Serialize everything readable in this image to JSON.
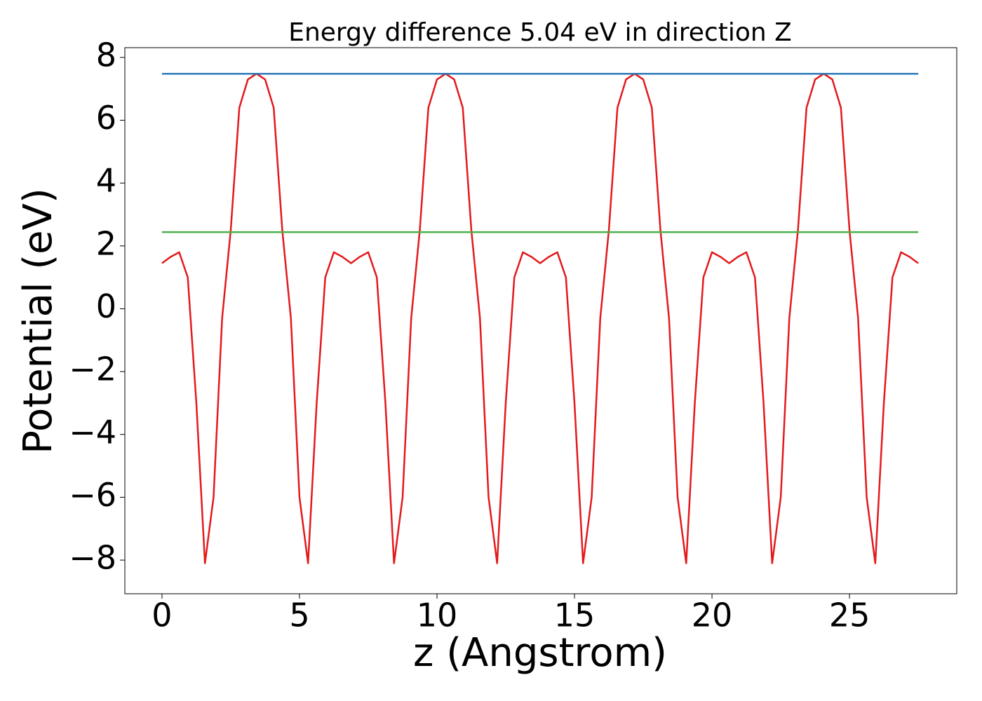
{
  "chart_data": {
    "type": "line",
    "title": "Energy difference 5.04 eV in direction Z",
    "x_label": "z (Angstrom)",
    "y_label": "Potential (eV)",
    "xlim": [
      -1.35,
      28.9
    ],
    "ylim": [
      -9.07,
      8.31
    ],
    "xticks": [
      0,
      5,
      10,
      15,
      20,
      25
    ],
    "yticks": [
      {
        "value": -8,
        "label": "−8"
      },
      {
        "value": -6,
        "label": "−6"
      },
      {
        "value": -4,
        "label": "−4"
      },
      {
        "value": -2,
        "label": "−2"
      },
      0,
      2,
      4,
      6,
      8
    ],
    "grid": false,
    "series": [
      {
        "color": "#e31a1c",
        "x": [
          0,
          0.3125,
          0.625,
          0.9375,
          1.25,
          1.5625,
          1.875,
          2.1875,
          2.5,
          2.8125,
          3.125,
          3.4375,
          3.75,
          4.0625,
          4.375,
          4.6875,
          5,
          5.3125,
          5.625,
          5.9375,
          6.25,
          6.5625,
          6.875,
          7.1875,
          7.5,
          7.8125,
          8.125,
          8.4375,
          8.75,
          9.0625,
          9.375,
          9.6875,
          10,
          10.3125,
          10.625,
          10.9375,
          11.25,
          11.5625,
          11.875,
          12.1875,
          12.5,
          12.8125,
          13.125,
          13.4375,
          13.75,
          14.0625,
          14.375,
          14.6875,
          15,
          15.3125,
          15.625,
          15.9375,
          16.25,
          16.5625,
          16.875,
          17.1875,
          17.5,
          17.8125,
          18.125,
          18.4375,
          18.75,
          19.0625,
          19.375,
          19.6875,
          20,
          20.3125,
          20.625,
          20.9375,
          21.25,
          21.5625,
          21.875,
          22.1875,
          22.5,
          22.8125,
          23.125,
          23.4375,
          23.75,
          24.0625,
          24.375,
          24.6875,
          25,
          25.3125,
          25.625,
          25.9375,
          26.25,
          26.5625,
          26.875,
          27.1875,
          27.5
        ],
        "values": [
          1.45,
          1.65,
          1.8,
          1.0,
          -3.0,
          -8.1,
          -6.0,
          -0.3,
          2.5,
          6.4,
          7.3,
          7.48,
          7.3,
          6.4,
          2.5,
          -0.3,
          -6.0,
          -8.1,
          -3.0,
          1.0,
          1.8,
          1.65,
          1.45,
          1.65,
          1.8,
          1.0,
          -3.0,
          -8.1,
          -6.0,
          -0.3,
          2.5,
          6.4,
          7.3,
          7.48,
          7.3,
          6.4,
          2.5,
          -0.3,
          -6.0,
          -8.1,
          -3.0,
          1.0,
          1.8,
          1.65,
          1.45,
          1.65,
          1.8,
          1.0,
          -3.0,
          -8.1,
          -6.0,
          -0.3,
          2.5,
          6.4,
          7.3,
          7.48,
          7.3,
          6.4,
          2.5,
          -0.3,
          -6.0,
          -8.1,
          -3.0,
          1.0,
          1.8,
          1.65,
          1.45,
          1.65,
          1.8,
          1.0,
          -3.0,
          -8.1,
          -6.0,
          -0.3,
          2.5,
          6.4,
          7.3,
          7.48,
          7.3,
          6.4,
          2.5,
          -0.3,
          -6.0,
          -8.1,
          -3.0,
          1.0,
          1.8,
          1.65,
          1.45
        ]
      },
      {
        "color": "#2b7bba",
        "x": [
          0,
          27.5
        ],
        "values": [
          7.48,
          7.48
        ]
      },
      {
        "color": "#4daf4a",
        "x": [
          0,
          27.5
        ],
        "values": [
          2.44,
          2.44
        ]
      }
    ]
  }
}
